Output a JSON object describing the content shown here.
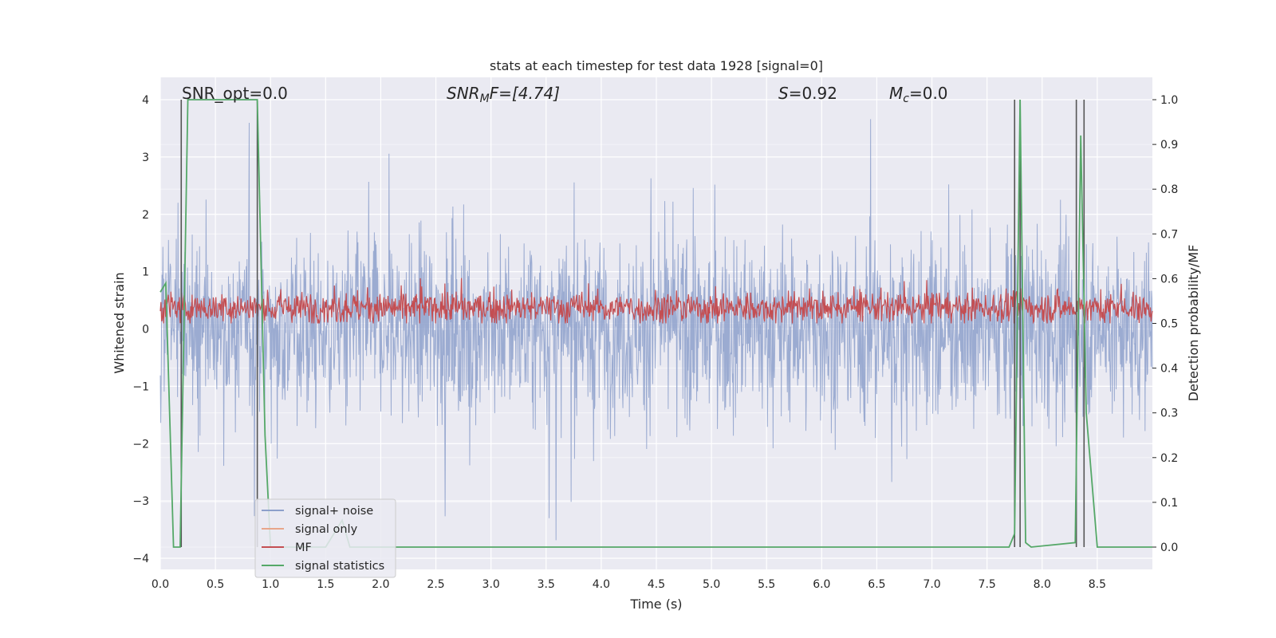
{
  "chart_data": {
    "type": "line",
    "title": "stats at each timestep for test data 1928 [signal=0]",
    "xlabel": "Time (s)",
    "ylabel_left": "Whitened strain",
    "ylabel_right": "Detection probability/MF",
    "xlim": [
      0.0,
      9.0
    ],
    "ylim_left": [
      -4.4,
      4.4
    ],
    "ylim_right": [
      -0.05,
      1.03
    ],
    "x_ticks": [
      "0.0",
      "0.5",
      "1.0",
      "1.5",
      "2.0",
      "2.5",
      "3.0",
      "3.5",
      "4.0",
      "4.5",
      "5.0",
      "5.5",
      "6.0",
      "6.5",
      "7.0",
      "7.5",
      "8.0",
      "8.5"
    ],
    "y_ticks_left": [
      "−4",
      "−3",
      "−2",
      "−1",
      "0",
      "1",
      "2",
      "3",
      "4"
    ],
    "y_ticks_right": [
      "0.0",
      "0.1",
      "0.2",
      "0.3",
      "0.4",
      "0.5",
      "0.6",
      "0.7",
      "0.8",
      "0.9",
      "1.0"
    ],
    "grid": true,
    "legend_position": "lower-left",
    "annotations": {
      "snr_opt": "SNR_opt=0.0",
      "snr_mf": "SNR",
      "snr_mf_sub": "M",
      "snr_mf_tail": "F=[4.74]",
      "s_stat": "=0.92",
      "s_letter": "S",
      "mc_letter": "M",
      "mc_sub": "c",
      "mc_value": "=0.0"
    },
    "series": [
      {
        "name": "signal+ noise",
        "color": "#8da0cb",
        "axis": "left",
        "description_values": {
          "min": -3.8,
          "max": 4.0,
          "typical_band": [
            -1.5,
            1.7
          ]
        }
      },
      {
        "name": "signal only",
        "color": "#e8a68a",
        "axis": "left",
        "values": []
      },
      {
        "name": "MF",
        "color": "#c44e52",
        "axis": "right",
        "typical_band": [
          0.5,
          0.58
        ],
        "peak": 0.62
      },
      {
        "name": "signal statistics",
        "color": "#55a868",
        "axis": "right",
        "x": [
          0.0,
          0.05,
          0.12,
          0.18,
          0.25,
          0.3,
          0.88,
          0.95,
          1.0,
          1.5,
          1.65,
          1.72,
          2.0,
          7.7,
          7.75,
          7.8,
          7.85,
          7.9,
          8.3,
          8.35,
          8.4,
          8.5,
          9.0
        ],
        "y": [
          0.57,
          0.59,
          0.0,
          0.0,
          1.0,
          1.0,
          1.0,
          0.25,
          0.0,
          0.0,
          0.06,
          0.0,
          0.0,
          0.0,
          0.03,
          1.0,
          0.01,
          0.0,
          0.01,
          0.92,
          0.3,
          0.0,
          0.0
        ]
      }
    ],
    "vertical_markers_x": [
      0.19,
      0.88,
      7.75,
      7.8,
      8.31,
      8.38
    ]
  },
  "legend": {
    "items": [
      "signal+ noise",
      "signal only",
      "MF",
      "signal statistics"
    ]
  }
}
